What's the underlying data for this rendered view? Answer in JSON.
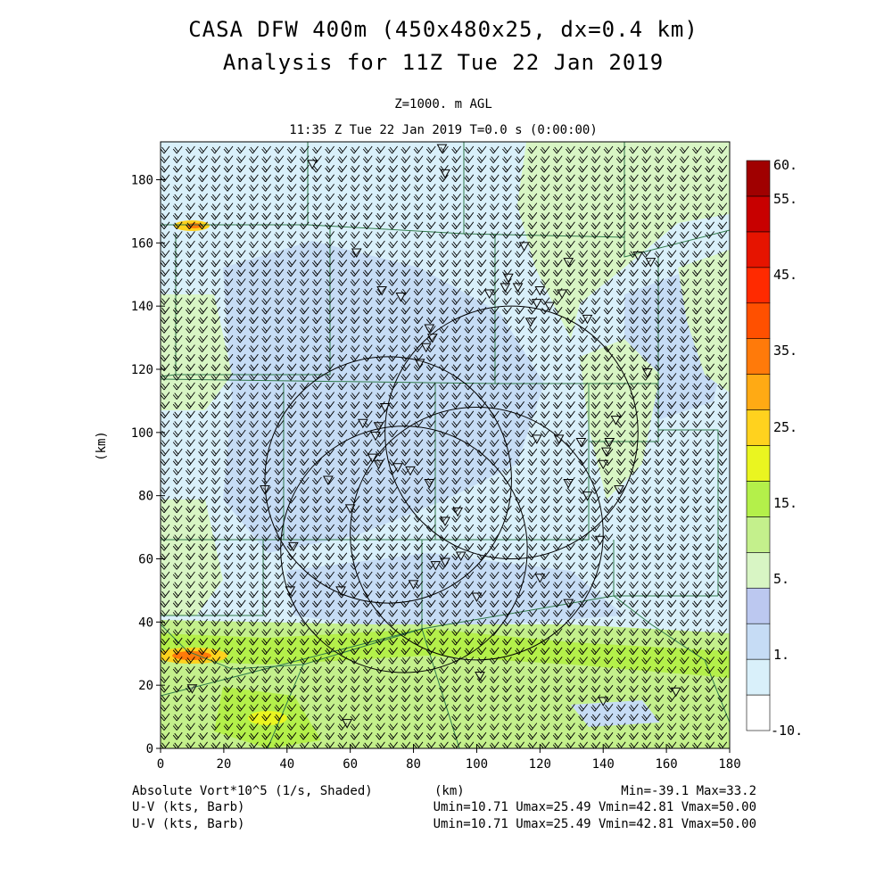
{
  "title_line1": "CASA DFW 400m (450x480x25, dx=0.4 km)",
  "title_line2": "Analysis for 11Z Tue 22 Jan 2019",
  "level_label": "Z=1000. m AGL",
  "time_label": "11:35 Z Tue 22 Jan 2019   T=0.0 s (0:00:00)",
  "axes": {
    "xlabel": "(km)",
    "ylabel": "(km)",
    "xlim": [
      0,
      180
    ],
    "ylim": [
      0,
      192
    ],
    "x_ticks": [
      "0",
      "20",
      "40",
      "60",
      "80",
      "100",
      "120",
      "140",
      "160",
      "180"
    ],
    "y_ticks": [
      "0",
      "20",
      "40",
      "60",
      "80",
      "100",
      "120",
      "140",
      "160",
      "180"
    ]
  },
  "colorbar": {
    "labels": [
      "60.",
      "55.",
      "45.",
      "35.",
      "25.",
      "15.",
      "5.",
      "1.",
      "-10."
    ],
    "colors": [
      "#ffffff",
      "#d9f0fa",
      "#c6dcf5",
      "#bcc8f0",
      "#d8f5c4",
      "#c4f08c",
      "#b4f04a",
      "#eaf520",
      "#ffd21e",
      "#ffaa14",
      "#ff7a0a",
      "#ff5000",
      "#ff2a00",
      "#e61400",
      "#c80000",
      "#a00000"
    ]
  },
  "footer": {
    "field_label": "Absolute Vort*10^5 (1/s, Shaded)",
    "xunits": "(km)",
    "minmax": "Min=-39.1 Max=33.2",
    "barb_label_1": "U-V (kts, Barb)",
    "barb_stats_1": "Umin=10.71 Umax=25.49 Vmin=42.81 Vmax=50.00",
    "barb_label_2": "U-V (kts, Barb)",
    "barb_stats_2": "Umin=10.71 Umax=25.49 Vmin=42.81 Vmax=50.00"
  },
  "radar_rings": [
    {
      "name": "ring-north",
      "center": [
        77,
        63
      ],
      "radius_km": 39
    },
    {
      "name": "ring-east",
      "center": [
        111,
        100
      ],
      "radius_km": 40
    },
    {
      "name": "ring-center",
      "center": [
        72,
        85
      ],
      "radius_km": 39
    },
    {
      "name": "ring-south",
      "center": [
        100,
        68
      ],
      "radius_km": 40
    }
  ],
  "stations": [
    [
      89,
      190
    ],
    [
      90,
      182
    ],
    [
      48,
      185
    ],
    [
      62,
      157
    ],
    [
      70,
      145
    ],
    [
      76,
      143
    ],
    [
      115,
      159
    ],
    [
      129,
      154
    ],
    [
      110,
      149
    ],
    [
      113,
      146
    ],
    [
      104,
      144
    ],
    [
      109,
      146
    ],
    [
      120,
      145
    ],
    [
      127,
      144
    ],
    [
      123,
      140
    ],
    [
      135,
      136
    ],
    [
      117,
      135
    ],
    [
      119,
      141
    ],
    [
      85,
      133
    ],
    [
      86,
      130
    ],
    [
      84,
      127
    ],
    [
      82,
      122
    ],
    [
      71,
      108
    ],
    [
      69,
      102
    ],
    [
      64,
      103
    ],
    [
      68,
      99
    ],
    [
      67,
      92
    ],
    [
      69,
      90
    ],
    [
      75,
      89
    ],
    [
      79,
      88
    ],
    [
      85,
      84
    ],
    [
      60,
      76
    ],
    [
      33,
      82
    ],
    [
      53,
      85
    ],
    [
      87,
      58
    ],
    [
      94,
      75
    ],
    [
      90,
      72
    ],
    [
      90,
      59
    ],
    [
      57,
      50
    ],
    [
      80,
      52
    ],
    [
      95,
      61
    ],
    [
      100,
      48
    ],
    [
      120,
      54
    ],
    [
      129,
      46
    ],
    [
      151,
      156
    ],
    [
      155,
      154
    ],
    [
      154,
      119
    ],
    [
      144,
      104
    ],
    [
      142,
      97
    ],
    [
      133,
      97
    ],
    [
      119,
      98
    ],
    [
      126,
      98
    ],
    [
      135,
      80
    ],
    [
      129,
      84
    ],
    [
      139,
      66
    ],
    [
      145,
      82
    ],
    [
      140,
      90
    ],
    [
      141,
      94
    ],
    [
      42,
      64
    ],
    [
      41,
      50
    ],
    [
      59,
      8
    ],
    [
      101,
      23
    ],
    [
      140,
      15
    ],
    [
      163,
      18
    ],
    [
      10,
      19
    ]
  ]
}
